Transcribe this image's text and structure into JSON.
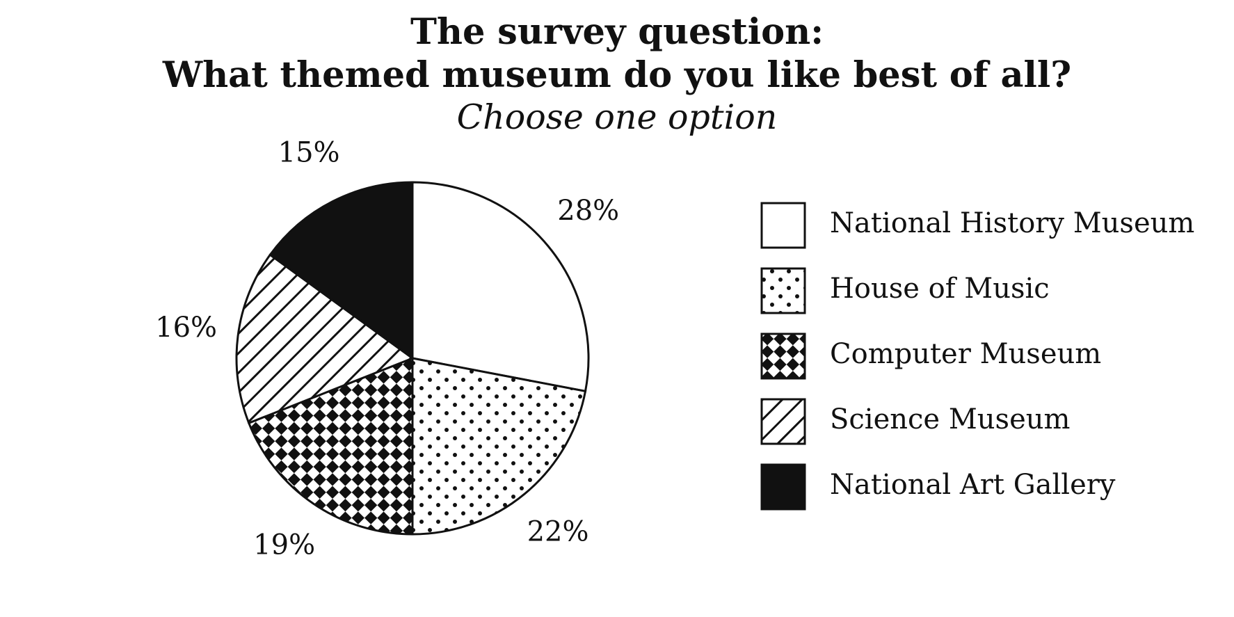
{
  "title_line1": "The survey question:",
  "title_line2": "What themed museum do you like best of all?",
  "subtitle": "Choose one option",
  "chart_data": {
    "type": "pie",
    "start": "12 o'clock",
    "direction": "clockwise",
    "slices": [
      {
        "label": "National History Museum",
        "value": 28,
        "display": "28%",
        "fill": "white"
      },
      {
        "label": "House of Music",
        "value": 22,
        "display": "22%",
        "fill": "dots"
      },
      {
        "label": "Computer Museum",
        "value": 19,
        "display": "19%",
        "fill": "checkerboard"
      },
      {
        "label": "Science Museum",
        "value": 16,
        "display": "16%",
        "fill": "diagonal-hatch"
      },
      {
        "label": "National Art Gallery",
        "value": 15,
        "display": "15%",
        "fill": "black"
      }
    ],
    "legend_position": "right"
  }
}
